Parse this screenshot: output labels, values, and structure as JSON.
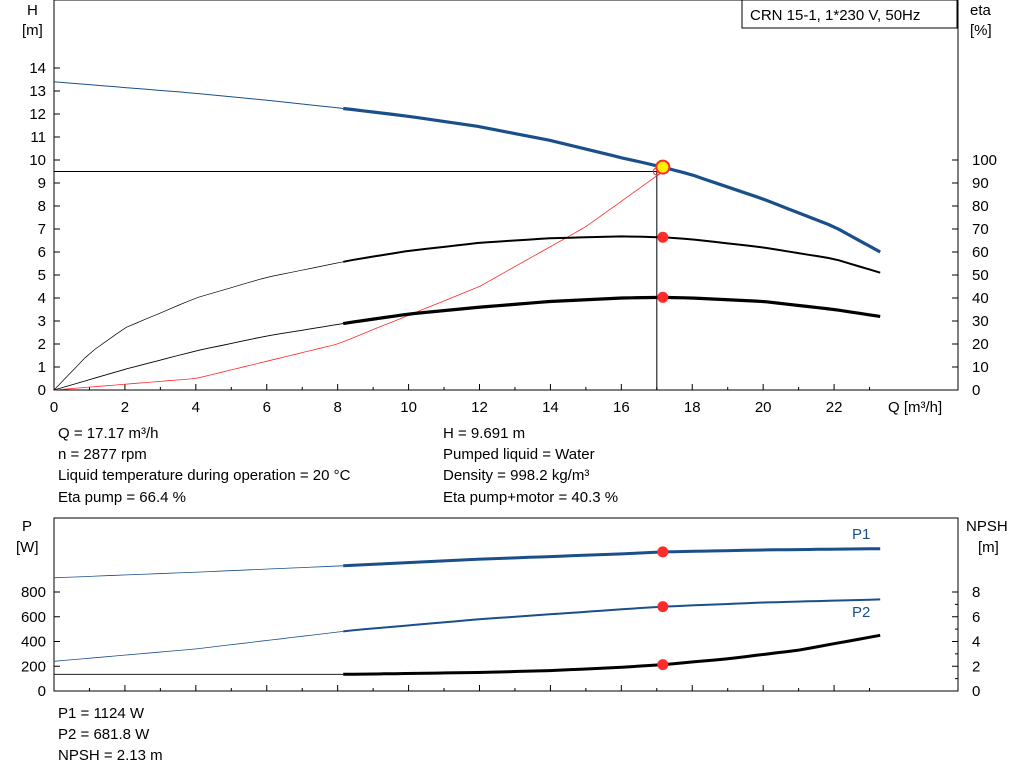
{
  "pump_label": "CRN 15-1, 1*230 V, 50Hz",
  "colors": {
    "blue": "#1a4f8a",
    "black": "#000000",
    "red": "#ff2a2a",
    "marker_yellow": "#ffee00"
  },
  "chart_data": [
    {
      "type": "line",
      "title": "",
      "xlabel": "Q [m³/h]",
      "ylabel_left": "H\n[m]",
      "ylabel_right": "eta\n[%]",
      "xlim": [
        0,
        24
      ],
      "ylim_left": [
        0,
        15
      ],
      "ylim_right": [
        0,
        150
      ],
      "x_ticks": [
        0,
        2,
        4,
        6,
        8,
        10,
        12,
        14,
        16,
        18,
        20,
        22
      ],
      "y_ticks_left": [
        0,
        1,
        2,
        3,
        4,
        5,
        6,
        7,
        8,
        9,
        10,
        11,
        12,
        13,
        14
      ],
      "y_ticks_right": [
        0,
        10,
        20,
        30,
        40,
        50,
        60,
        70,
        80,
        90,
        100
      ],
      "operating_point": {
        "Q": 17.17,
        "H": 9.691,
        "eta_pump": 66.4,
        "eta_pump_motor": 40.3
      },
      "series": [
        {
          "key": "H",
          "x": [
            0,
            2,
            4,
            6,
            8.4,
            10,
            12,
            14,
            16,
            17.17,
            18,
            20,
            22,
            23.3
          ],
          "y": [
            13.4,
            13.15,
            12.9,
            12.6,
            12.2,
            11.9,
            11.45,
            10.85,
            10.1,
            9.691,
            9.35,
            8.3,
            7.1,
            6.0
          ],
          "axis": "left"
        },
        {
          "key": "eta_pump",
          "x": [
            0,
            1,
            2,
            4,
            6,
            8.4,
            10,
            12,
            14,
            16,
            17.17,
            18,
            20,
            22,
            23.3
          ],
          "y": [
            0,
            16,
            27,
            40,
            49,
            56.5,
            60.5,
            64,
            66,
            66.8,
            66.4,
            65.5,
            62,
            57,
            51
          ],
          "axis": "right"
        },
        {
          "key": "eta_pump_motor",
          "x": [
            0,
            2,
            4,
            6,
            8.4,
            10,
            12,
            14,
            16,
            17.17,
            18,
            20,
            22,
            23.3
          ],
          "y": [
            0,
            9,
            17,
            23.5,
            29.5,
            33,
            36,
            38.5,
            40,
            40.3,
            40,
            38.5,
            35,
            32
          ],
          "axis": "right"
        },
        {
          "key": "system",
          "x": [
            0,
            4,
            8,
            12,
            15,
            17.17
          ],
          "y": [
            0,
            0.5,
            2,
            4.5,
            7.1,
            9.5
          ],
          "axis": "left"
        }
      ]
    },
    {
      "type": "line",
      "title": "",
      "xlabel": "",
      "ylabel_left": "P\n[W]",
      "ylabel_right": "NPSH\n[m]",
      "xlim": [
        0,
        24
      ],
      "ylim_left": [
        0,
        1200
      ],
      "ylim_right": [
        0,
        12
      ],
      "y_ticks_left": [
        0,
        200,
        400,
        600,
        800
      ],
      "y_ticks_right": [
        0,
        2,
        4,
        6,
        8
      ],
      "series": [
        {
          "name": "P1",
          "key": "P1",
          "x": [
            0,
            4,
            8.4,
            12,
            16,
            17.17,
            20,
            23.3
          ],
          "y": [
            915,
            960,
            1015,
            1065,
            1108,
            1124,
            1140,
            1150
          ],
          "axis": "left"
        },
        {
          "name": "P2",
          "key": "P2",
          "x": [
            0,
            4,
            8.4,
            12,
            16,
            17.17,
            20,
            23.3
          ],
          "y": [
            240,
            340,
            490,
            580,
            660,
            681.8,
            715,
            740
          ],
          "axis": "left"
        },
        {
          "key": "NPSH",
          "x": [
            0,
            4,
            8.4,
            12,
            14,
            16,
            17.17,
            19,
            21,
            23.3
          ],
          "y": [
            1.35,
            1.35,
            1.35,
            1.5,
            1.65,
            1.92,
            2.13,
            2.6,
            3.3,
            4.5
          ],
          "axis": "right"
        }
      ]
    }
  ],
  "readouts": {
    "q": "Q = 17.17 m³/h",
    "n": "n = 2877 rpm",
    "temp": "Liquid temperature during operation = 20 °C",
    "eta_pump": "Eta pump = 66.4 %",
    "h": "H = 9.691 m",
    "liquid": "Pumped liquid = Water",
    "density": "Density = 998.2 kg/m³",
    "eta_pm": "Eta pump+motor = 40.3 %",
    "p1": "P1 = 1124 W",
    "p2": "P2 = 681.8 W",
    "npsh": "NPSH = 2.13 m"
  }
}
